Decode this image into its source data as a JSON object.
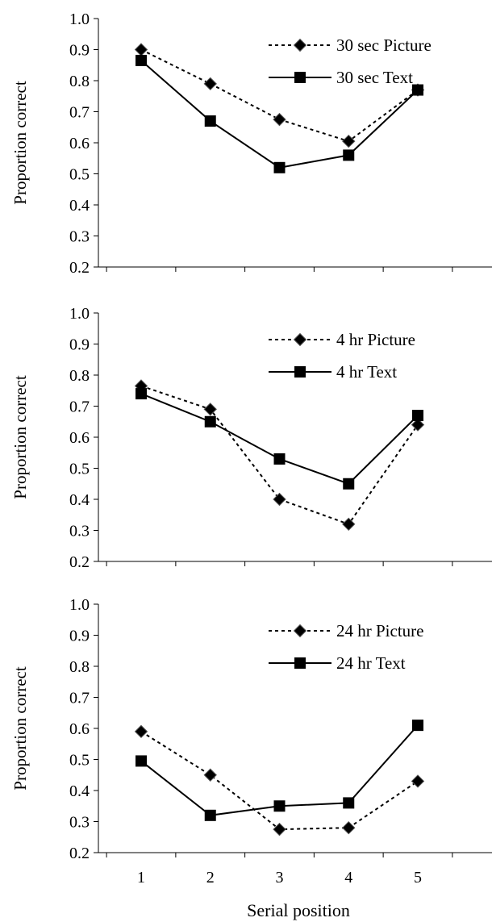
{
  "chart_data": [
    {
      "type": "line",
      "ylabel": "Proportion correct",
      "xlabel": "",
      "ylim": [
        0.2,
        1.0
      ],
      "yticks": [
        "0.2",
        "0.3",
        "0.4",
        "0.5",
        "0.6",
        "0.7",
        "0.8",
        "0.9",
        "1.0"
      ],
      "x": [
        1,
        2,
        3,
        4,
        5
      ],
      "xticks_shown": false,
      "legend_position": "top-right",
      "series": [
        {
          "name": "30 sec Picture",
          "marker": "diamond",
          "line": "dotted",
          "values": [
            0.9,
            0.79,
            0.675,
            0.605,
            0.77
          ]
        },
        {
          "name": "30 sec Text",
          "marker": "square",
          "line": "solid",
          "values": [
            0.865,
            0.67,
            0.52,
            0.56,
            0.77
          ]
        }
      ]
    },
    {
      "type": "line",
      "ylabel": "Proportion correct",
      "xlabel": "",
      "ylim": [
        0.2,
        1.0
      ],
      "yticks": [
        "0.2",
        "0.3",
        "0.4",
        "0.5",
        "0.6",
        "0.7",
        "0.8",
        "0.9",
        "1.0"
      ],
      "x": [
        1,
        2,
        3,
        4,
        5
      ],
      "xticks_shown": false,
      "legend_position": "top-right",
      "series": [
        {
          "name": "4 hr Picture",
          "marker": "diamond",
          "line": "dotted",
          "values": [
            0.765,
            0.69,
            0.4,
            0.32,
            0.64
          ]
        },
        {
          "name": "4 hr Text",
          "marker": "square",
          "line": "solid",
          "values": [
            0.74,
            0.65,
            0.53,
            0.45,
            0.67
          ]
        }
      ]
    },
    {
      "type": "line",
      "ylabel": "Proportion correct",
      "xlabel": "Serial position",
      "ylim": [
        0.2,
        1.0
      ],
      "yticks": [
        "0.2",
        "0.3",
        "0.4",
        "0.5",
        "0.6",
        "0.7",
        "0.8",
        "0.9",
        "1.0"
      ],
      "x": [
        1,
        2,
        3,
        4,
        5
      ],
      "xticks": [
        "1",
        "2",
        "3",
        "4",
        "5"
      ],
      "xticks_shown": true,
      "legend_position": "top-right",
      "series": [
        {
          "name": "24 hr Picture",
          "marker": "diamond",
          "line": "dotted",
          "values": [
            0.59,
            0.45,
            0.275,
            0.28,
            0.43
          ]
        },
        {
          "name": "24 hr Text",
          "marker": "square",
          "line": "solid",
          "values": [
            0.495,
            0.32,
            0.35,
            0.36,
            0.61
          ]
        }
      ]
    }
  ],
  "colors": {
    "line": "#000000",
    "marker_fill": "#000000",
    "background": "#ffffff"
  }
}
